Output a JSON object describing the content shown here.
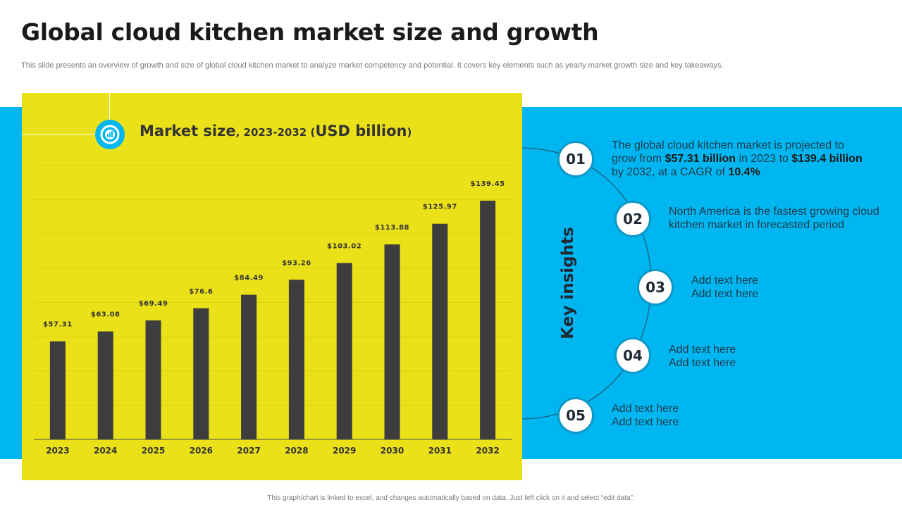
{
  "title": "Global cloud kitchen market size and growth",
  "subtitle": "This slide presents an overview of growth and size of global cloud kitchen market to analyze market competency and potential. It covers key elements such as yearly market growth size and key takeaways.",
  "colors": {
    "yellow": "#ebe119",
    "blue": "#00b6f0",
    "bar": "#3d3d3d",
    "circle_border": "#0d97c6"
  },
  "chart_icon": "bar-chart-icon",
  "chart_data": {
    "type": "bar",
    "title": "Market size",
    "title_range": ", 2023-2032 (",
    "title_unit": "USD billion",
    "title_close": ")",
    "categories": [
      "2023",
      "2024",
      "2025",
      "2026",
      "2027",
      "2028",
      "2029",
      "2030",
      "2031",
      "2032"
    ],
    "values": [
      57.31,
      63.08,
      69.49,
      76.6,
      84.49,
      93.26,
      103.02,
      113.88,
      125.97,
      139.45
    ],
    "data_labels": [
      "$57.31",
      "$63.08",
      "$69.49",
      "$76.6",
      "$84.49",
      "$93.26",
      "$103.02",
      "$113.88",
      "$125.97",
      "$139.45"
    ],
    "ylim": [
      0,
      160
    ],
    "grid": true,
    "xlabel": "",
    "ylabel": ""
  },
  "insights": {
    "label": "Key insights",
    "items": [
      {
        "num": "01",
        "parts": [
          {
            "t": "The global cloud kitchen market is projected to grow from ",
            "b": false
          },
          {
            "t": "$57.31 billion",
            "b": true
          },
          {
            "t": " in 2023 to ",
            "b": false
          },
          {
            "t": "$139.4 billion",
            "b": true
          },
          {
            "t": " by 2032, at a CAGR of ",
            "b": false
          },
          {
            "t": "10.4%",
            "b": true
          }
        ]
      },
      {
        "num": "02",
        "parts": [
          {
            "t": "North America is the fastest growing cloud kitchen market in forecasted period",
            "b": false
          }
        ]
      },
      {
        "num": "03",
        "parts": [
          {
            "t": "Add text here",
            "b": false
          },
          {
            "t": "Add text here",
            "b": false
          }
        ]
      },
      {
        "num": "04",
        "parts": [
          {
            "t": "Add text here",
            "b": false
          },
          {
            "t": "Add text here",
            "b": false
          }
        ]
      },
      {
        "num": "05",
        "parts": [
          {
            "t": "Add text here",
            "b": false
          },
          {
            "t": "Add text here",
            "b": false
          }
        ]
      }
    ]
  },
  "footer": "This graph/chart is linked to excel, and changes automatically based on data. Just left click on it and select “edit data”."
}
